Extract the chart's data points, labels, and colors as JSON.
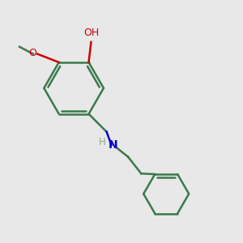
{
  "background_color": "#e8e8e8",
  "bond_color": "#3a7a4a",
  "nitrogen_color": "#0000cc",
  "oxygen_color": "#cc0000",
  "h_color": "#8aaa88",
  "line_width": 1.8,
  "figsize": [
    3.0,
    3.0
  ],
  "dpi": 100,
  "xlim": [
    0,
    10
  ],
  "ylim": [
    0,
    10
  ]
}
